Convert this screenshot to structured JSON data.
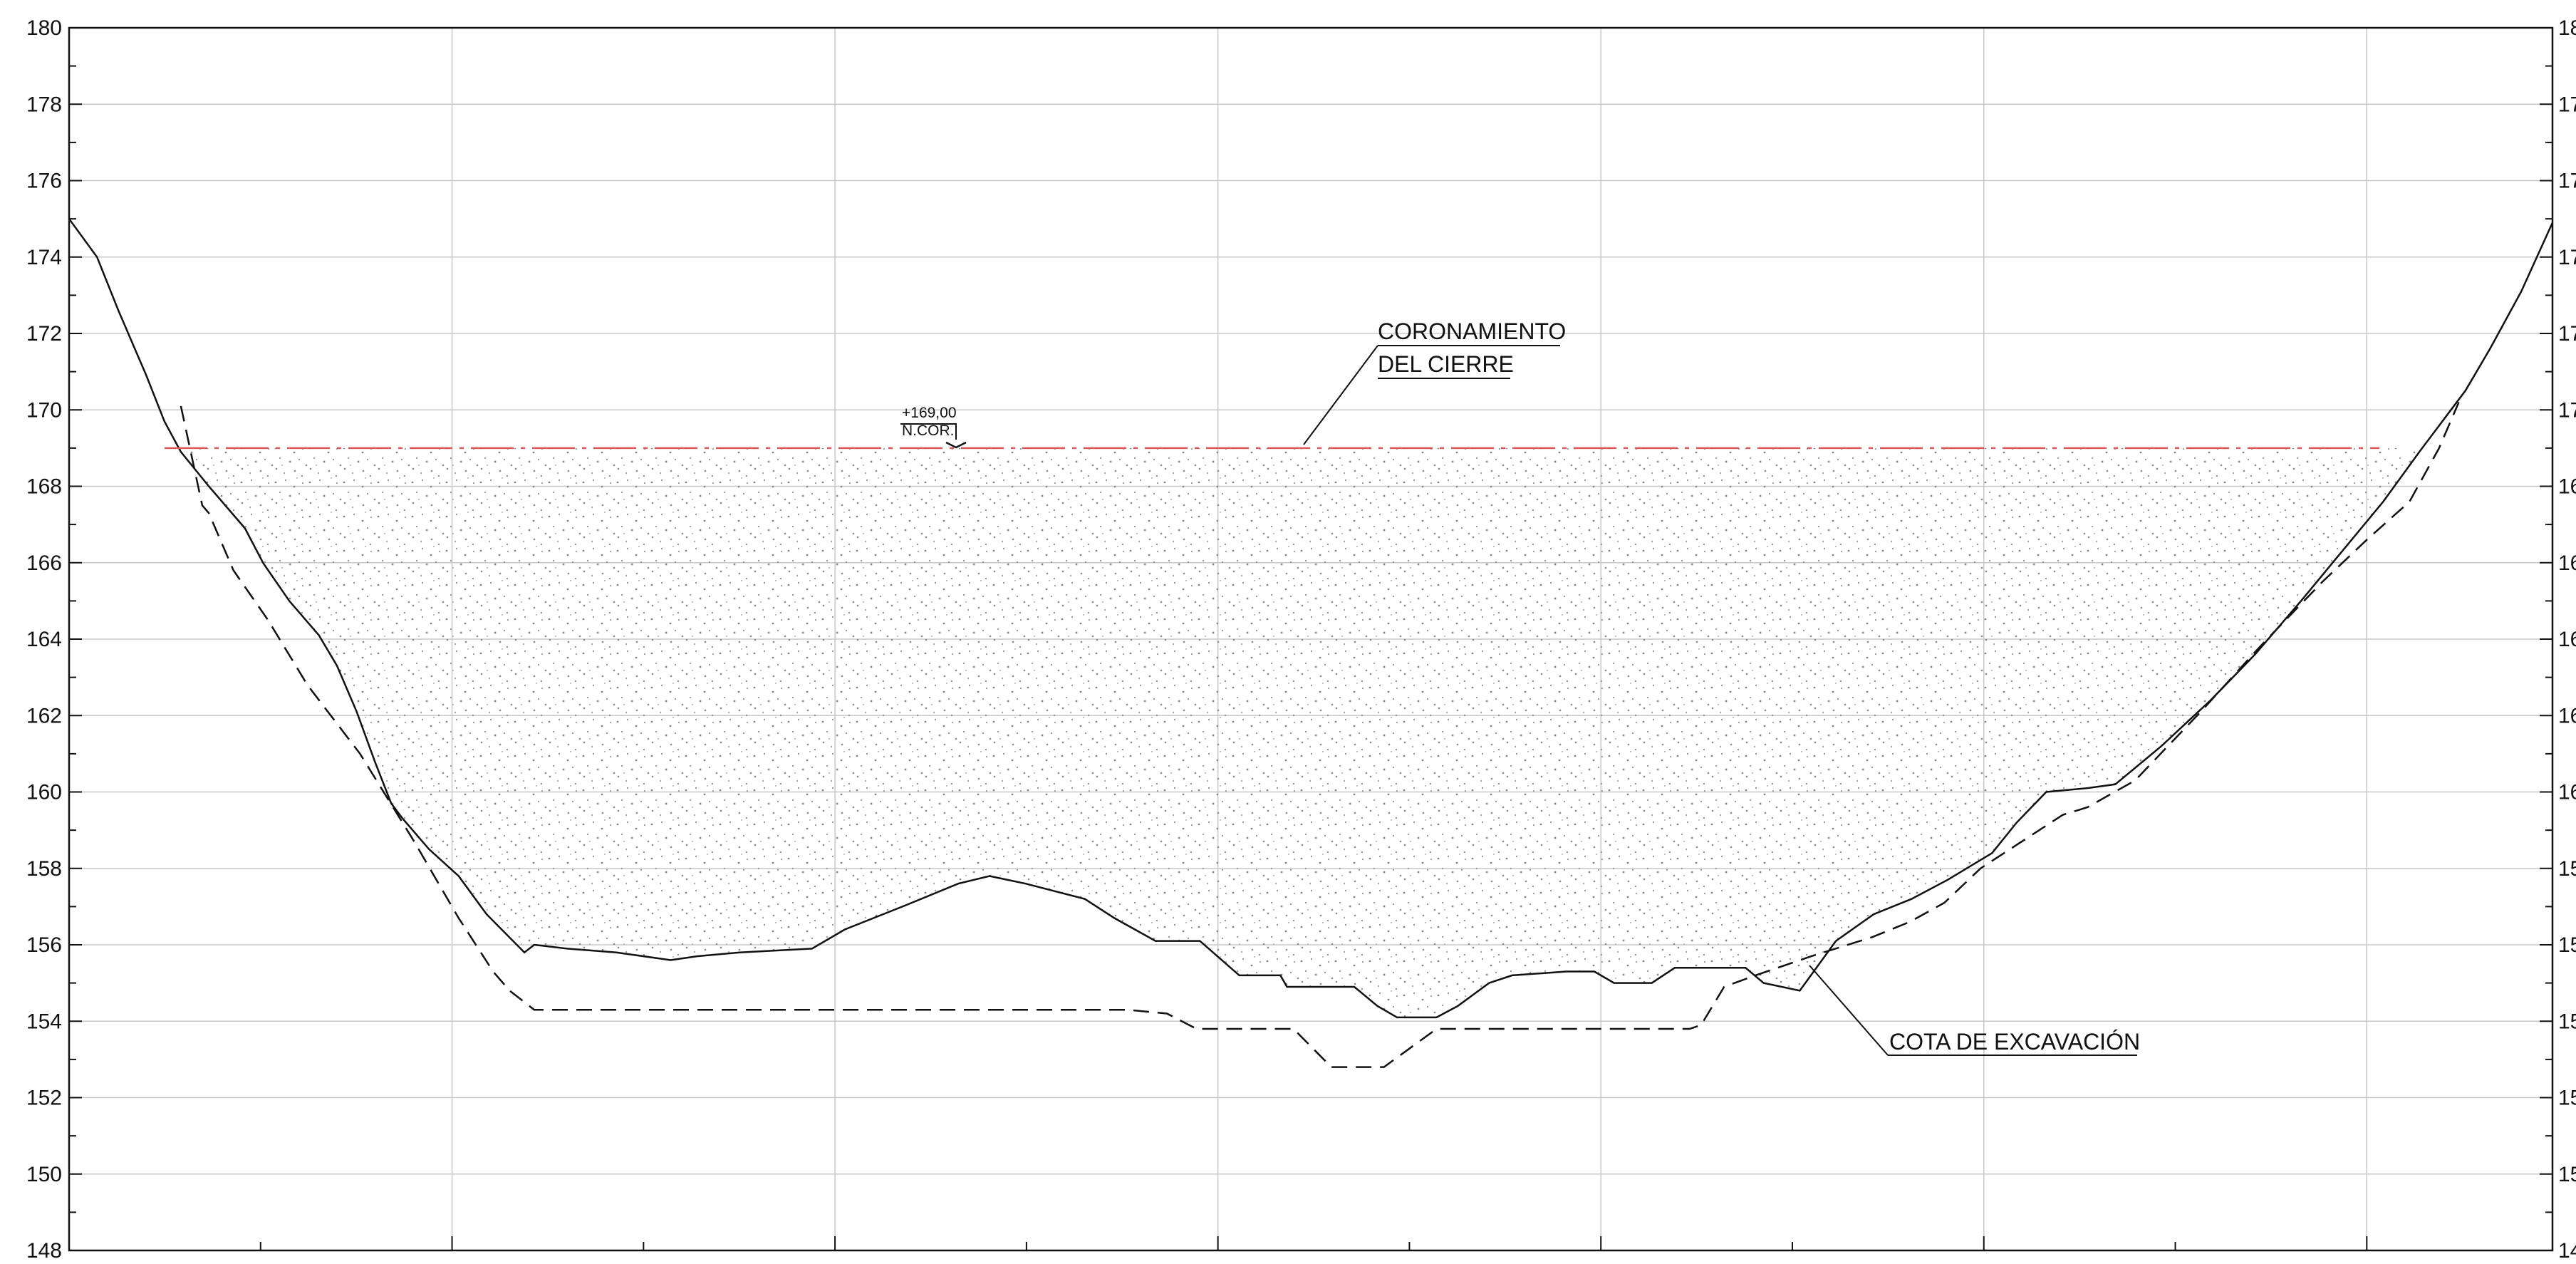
{
  "figure": {
    "type": "dam cross-section",
    "y_axis": {
      "min": 148,
      "max": 180,
      "major_step": 2,
      "minor_step": 1,
      "labels_left": [
        "180",
        "178",
        "176",
        "174",
        "172",
        "170",
        "168",
        "166",
        "164",
        "162",
        "160",
        "158",
        "156",
        "154",
        "152",
        "150",
        "148"
      ],
      "labels_right": [
        "18",
        "17",
        "17",
        "17",
        "17",
        "17",
        "16",
        "16",
        "16",
        "16",
        "16",
        "15",
        "15",
        "15",
        "15",
        "15",
        "14"
      ],
      "grid": true
    },
    "x_axis": {
      "min": 0,
      "max": 1511,
      "major_step": 233,
      "minor_step": 116.5,
      "grid": true
    },
    "crest": {
      "level_value": "+169,00",
      "level_tag": "N.COR.",
      "label_line1": "CORONAMIENTO",
      "label_line2": "DEL CIERRE",
      "elevation": 169,
      "color": "#e05555"
    },
    "excavation": {
      "label": "COTA DE EXCAVACIÓN"
    },
    "ground_profile": [
      [
        0,
        175
      ],
      [
        17,
        174
      ],
      [
        30,
        172.6
      ],
      [
        47,
        170.9
      ],
      [
        58,
        169.7
      ],
      [
        68,
        168.9
      ],
      [
        85,
        168
      ],
      [
        107,
        166.9
      ],
      [
        118,
        166
      ],
      [
        134,
        165
      ],
      [
        152,
        164.1
      ],
      [
        163,
        163.3
      ],
      [
        175,
        162.1
      ],
      [
        186,
        160.8
      ],
      [
        196,
        159.7
      ],
      [
        203,
        159.3
      ],
      [
        219,
        158.5
      ],
      [
        237,
        157.8
      ],
      [
        254,
        156.8
      ],
      [
        277,
        155.8
      ],
      [
        283,
        156
      ],
      [
        303,
        155.9
      ],
      [
        333,
        155.8
      ],
      [
        366,
        155.6
      ],
      [
        382,
        155.7
      ],
      [
        408,
        155.8
      ],
      [
        452,
        155.9
      ],
      [
        472,
        156.4
      ],
      [
        507,
        157
      ],
      [
        541,
        157.6
      ],
      [
        560,
        157.8
      ],
      [
        582,
        157.6
      ],
      [
        618,
        157.2
      ],
      [
        636,
        156.7
      ],
      [
        661,
        156.1
      ],
      [
        688,
        156.1
      ],
      [
        712,
        155.2
      ],
      [
        737,
        155.2
      ],
      [
        741,
        154.9
      ],
      [
        782,
        154.9
      ],
      [
        796,
        154.4
      ],
      [
        808,
        154.1
      ],
      [
        832,
        154.1
      ],
      [
        845,
        154.4
      ],
      [
        864,
        155
      ],
      [
        878,
        155.2
      ],
      [
        911,
        155.3
      ],
      [
        928,
        155.3
      ],
      [
        940,
        155
      ],
      [
        963,
        155
      ],
      [
        977,
        155.4
      ],
      [
        1020,
        155.4
      ],
      [
        1031,
        155
      ],
      [
        1053,
        154.8
      ],
      [
        1075,
        156.1
      ],
      [
        1098,
        156.8
      ],
      [
        1121,
        157.2
      ],
      [
        1143,
        157.7
      ],
      [
        1170,
        158.4
      ],
      [
        1185,
        159.2
      ],
      [
        1203,
        160
      ],
      [
        1228,
        160.1
      ],
      [
        1245,
        160.2
      ],
      [
        1273,
        161.2
      ],
      [
        1303,
        162.4
      ],
      [
        1330,
        163.6
      ],
      [
        1358,
        165
      ],
      [
        1383,
        166.3
      ],
      [
        1408,
        167.6
      ],
      [
        1430,
        168.9
      ],
      [
        1458,
        170.5
      ],
      [
        1473,
        171.6
      ],
      [
        1492,
        173.1
      ],
      [
        1511,
        174.9
      ]
    ],
    "excavation_profile": [
      [
        68,
        170.1
      ],
      [
        81,
        167.5
      ],
      [
        85,
        167.3
      ],
      [
        100,
        165.8
      ],
      [
        121,
        164.5
      ],
      [
        145,
        162.8
      ],
      [
        177,
        161
      ],
      [
        210,
        158.7
      ],
      [
        237,
        156.7
      ],
      [
        258,
        155.3
      ],
      [
        268,
        154.8
      ],
      [
        283,
        154.3
      ],
      [
        340,
        154.3
      ],
      [
        397,
        154.3
      ],
      [
        451,
        154.3
      ],
      [
        571,
        154.3
      ],
      [
        644,
        154.3
      ],
      [
        668,
        154.2
      ],
      [
        686,
        153.8
      ],
      [
        745,
        153.8
      ],
      [
        768,
        152.8
      ],
      [
        800,
        152.8
      ],
      [
        832,
        153.8
      ],
      [
        986,
        153.8
      ],
      [
        993,
        153.9
      ],
      [
        1007,
        154.9
      ],
      [
        1026,
        155.2
      ],
      [
        1060,
        155.7
      ],
      [
        1097,
        156.2
      ],
      [
        1120,
        156.6
      ],
      [
        1141,
        157.1
      ],
      [
        1163,
        158
      ],
      [
        1188,
        158.7
      ],
      [
        1213,
        159.4
      ],
      [
        1228,
        159.6
      ],
      [
        1257,
        160.3
      ],
      [
        1297,
        162.1
      ],
      [
        1333,
        163.8
      ],
      [
        1371,
        165.5
      ],
      [
        1398,
        166.6
      ],
      [
        1424,
        167.6
      ],
      [
        1442,
        169
      ],
      [
        1454,
        170.2
      ]
    ]
  }
}
